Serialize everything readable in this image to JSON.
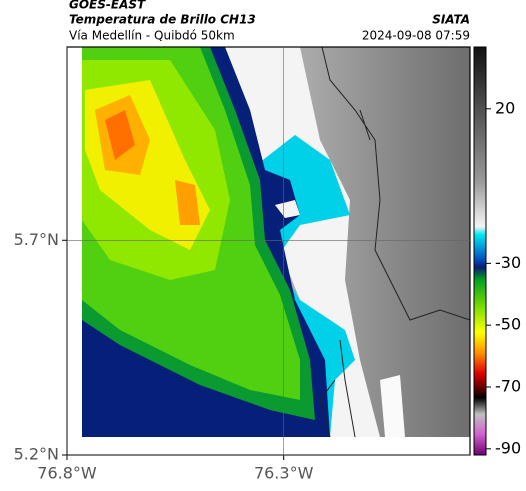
{
  "header": {
    "satellite": "GOES-EAST",
    "title": "Temperatura de Brillo CH13",
    "subtitle": "Vía Medellín - Quibdó 50km",
    "source": "SIATA",
    "timestamp": "2024-09-08 07:59"
  },
  "map": {
    "xlim": [
      -76.8,
      -75.87
    ],
    "ylim": [
      5.2,
      6.15
    ],
    "xticks": [
      {
        "value": -76.8,
        "label": "76.8°W"
      },
      {
        "value": -76.3,
        "label": "76.3°W"
      }
    ],
    "yticks": [
      {
        "value": 5.7,
        "label": "5.7°N"
      },
      {
        "value": 5.2,
        "label": "5.2°N"
      }
    ],
    "grid": true
  },
  "colorbar": {
    "clim": [
      40,
      -92
    ],
    "ticks": [
      20,
      -30,
      -50,
      -70,
      -90
    ]
  }
}
